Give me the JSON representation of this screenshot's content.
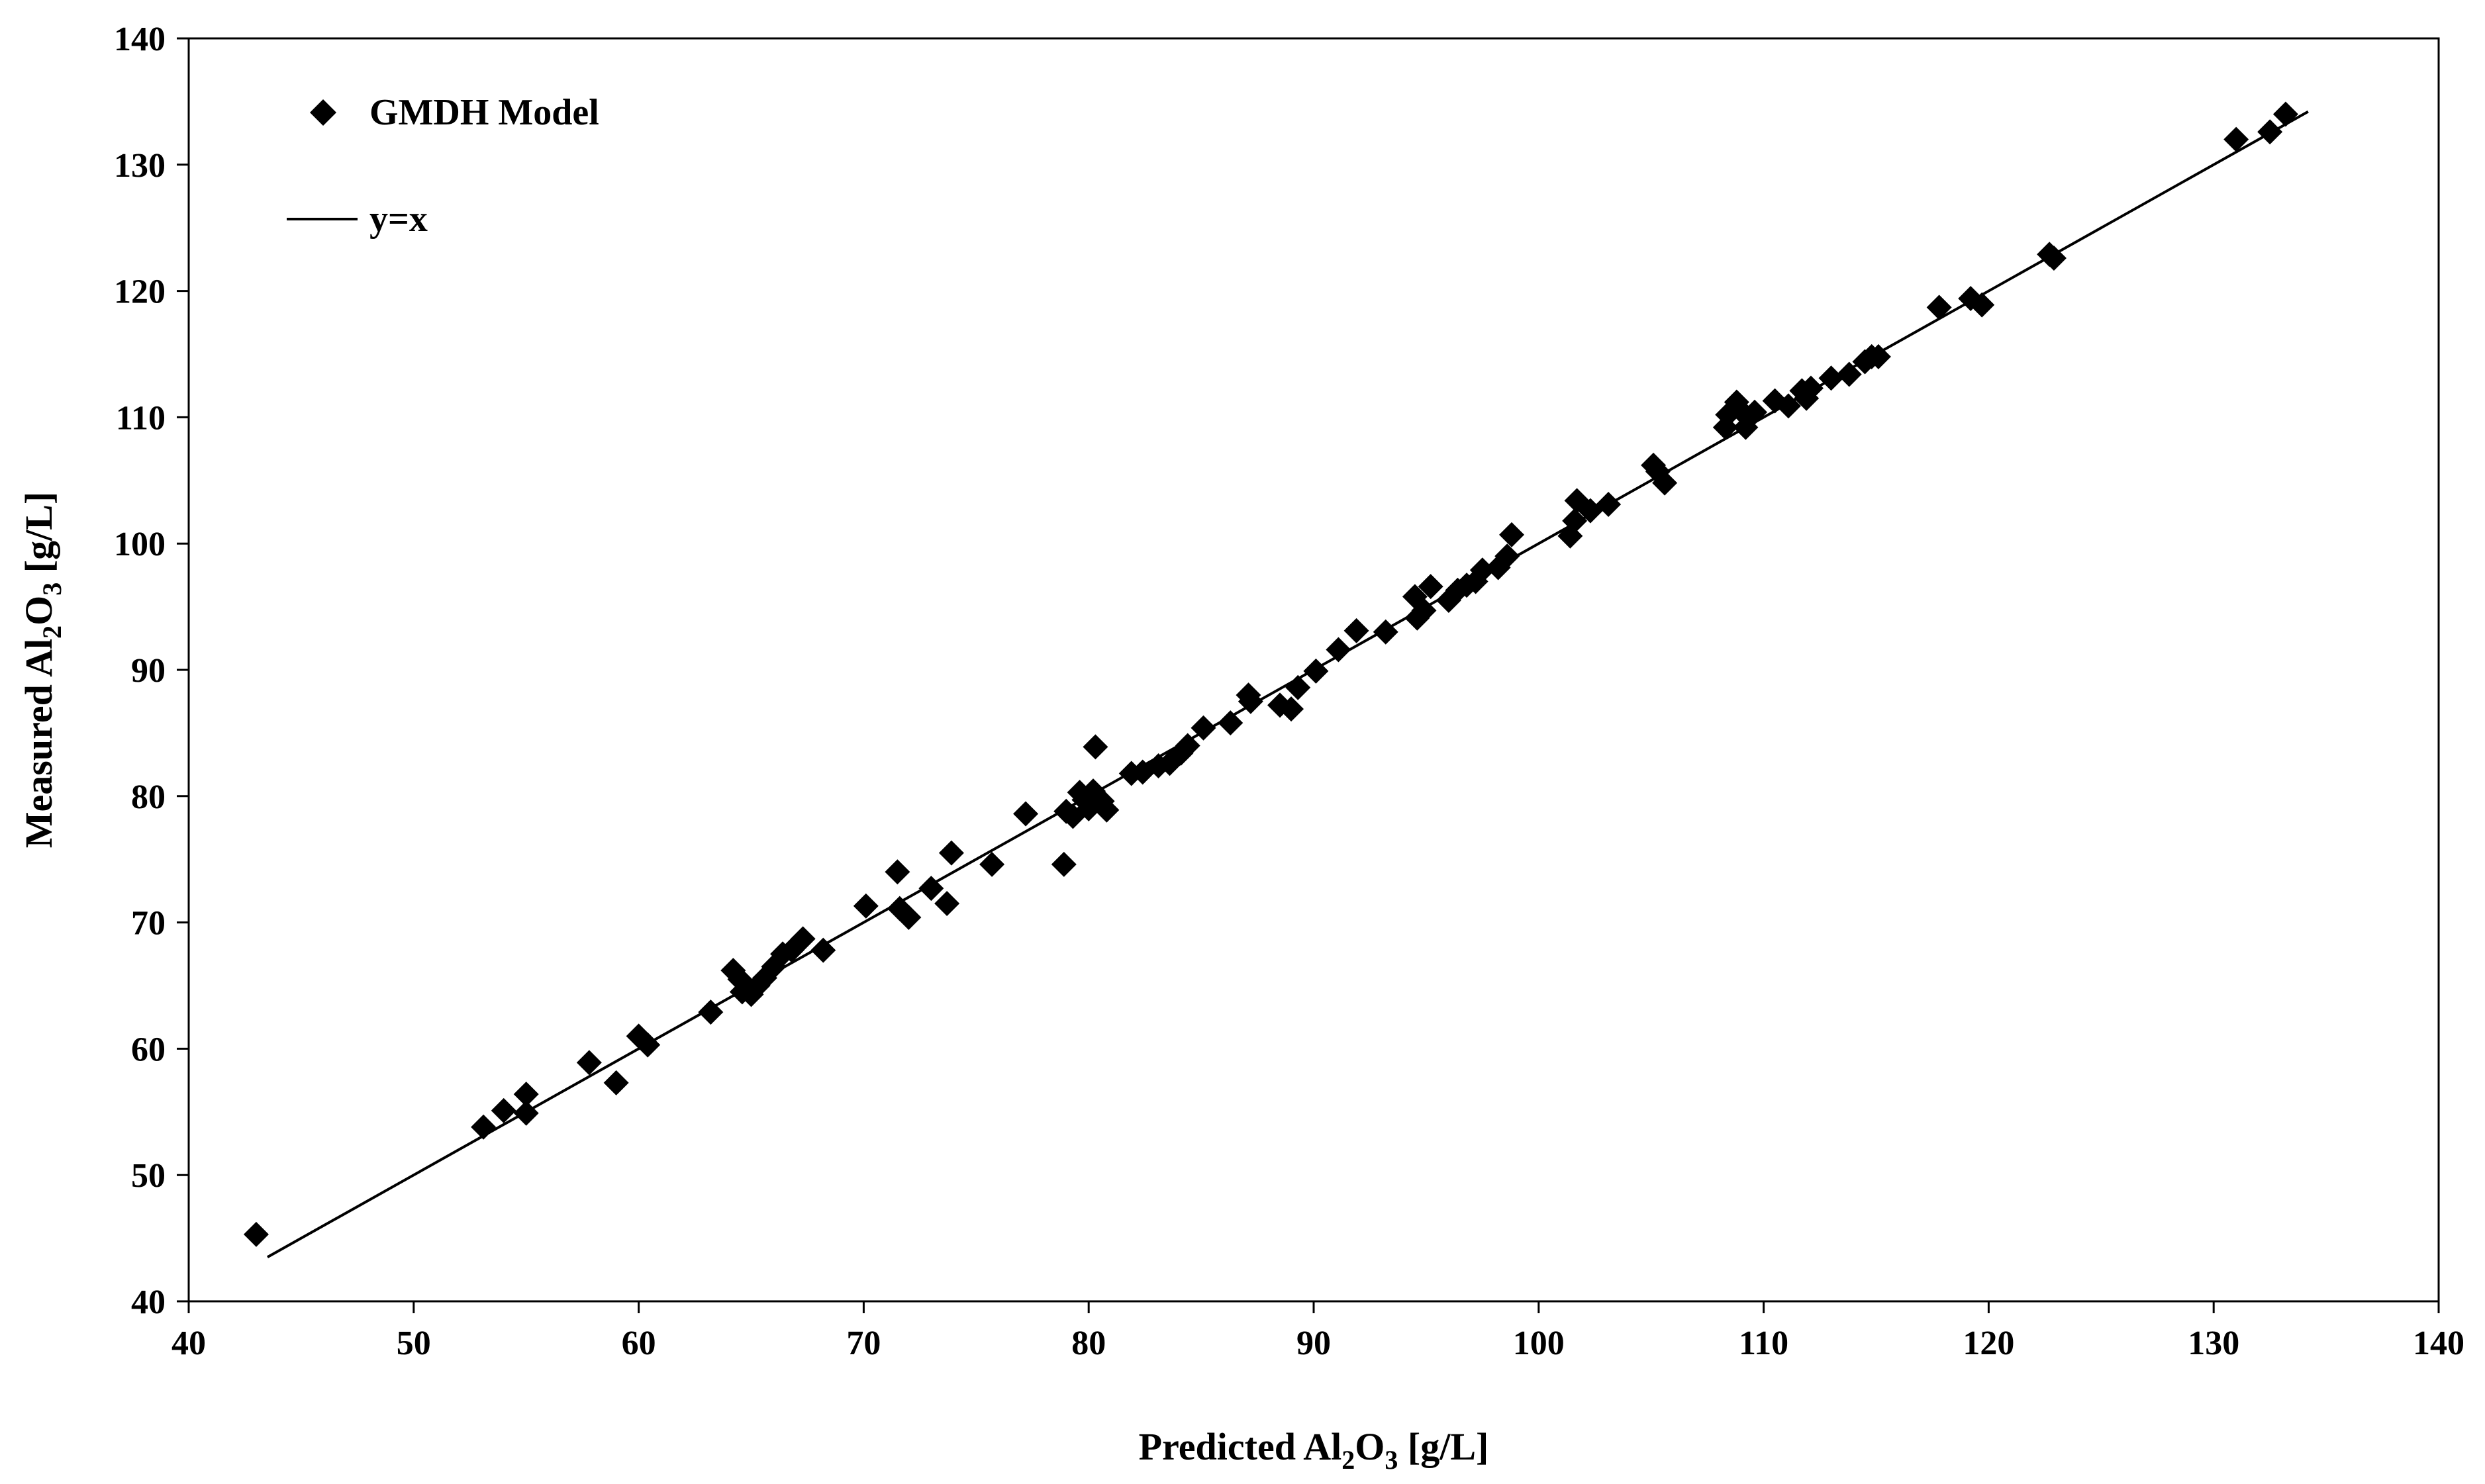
{
  "chart_data": {
    "type": "scatter",
    "xlabel": {
      "main": "Predicted Al",
      "sub1": "2",
      "mid": "O",
      "sub2": "3",
      "unit": " [g/L]"
    },
    "ylabel": {
      "main": "Measured Al",
      "sub1": "2",
      "mid": "O",
      "sub2": "3",
      "unit": " [g/L]"
    },
    "xlim": [
      40,
      140
    ],
    "ylim": [
      40,
      140
    ],
    "xticks": [
      40,
      50,
      60,
      70,
      80,
      90,
      100,
      110,
      120,
      130,
      140
    ],
    "yticks": [
      40,
      50,
      60,
      70,
      80,
      90,
      100,
      110,
      120,
      130,
      140
    ],
    "grid": false,
    "legend_position": "top-left",
    "series": [
      {
        "name": "GMDH Model",
        "kind": "scatter",
        "marker": "diamond",
        "color": "#000000",
        "points": [
          [
            43,
            45.3
          ],
          [
            53.1,
            53.8
          ],
          [
            54,
            55.1
          ],
          [
            55,
            56.4
          ],
          [
            55,
            54.9
          ],
          [
            57.8,
            58.9
          ],
          [
            59,
            57.3
          ],
          [
            60,
            61
          ],
          [
            60.4,
            60.3
          ],
          [
            63.2,
            62.9
          ],
          [
            64.2,
            66.2
          ],
          [
            64.5,
            65.5
          ],
          [
            64.6,
            64.5
          ],
          [
            65,
            64.3
          ],
          [
            65.3,
            65
          ],
          [
            65.6,
            65.6
          ],
          [
            66,
            66.5
          ],
          [
            66.4,
            67.5
          ],
          [
            66.8,
            67.8
          ],
          [
            67.3,
            68.7
          ],
          [
            68.2,
            67.8
          ],
          [
            70.1,
            71.3
          ],
          [
            71.5,
            74
          ],
          [
            71.6,
            71.1
          ],
          [
            72,
            70.4
          ],
          [
            73,
            72.7
          ],
          [
            73.7,
            71.5
          ],
          [
            73.9,
            75.5
          ],
          [
            75.7,
            74.6
          ],
          [
            77.2,
            78.6
          ],
          [
            78.9,
            74.6
          ],
          [
            79,
            78.8
          ],
          [
            79.3,
            78.4
          ],
          [
            79.6,
            80.3
          ],
          [
            79.8,
            79.7
          ],
          [
            80,
            79
          ],
          [
            80.2,
            80.4
          ],
          [
            80.3,
            83.9
          ],
          [
            80.6,
            79.6
          ],
          [
            80.8,
            78.9
          ],
          [
            81.9,
            81.8
          ],
          [
            82.4,
            81.9
          ],
          [
            83.1,
            82.4
          ],
          [
            83.6,
            82.6
          ],
          [
            84.1,
            83.4
          ],
          [
            84.4,
            84
          ],
          [
            85.1,
            85.4
          ],
          [
            86.3,
            85.8
          ],
          [
            87.1,
            88
          ],
          [
            87.2,
            87.5
          ],
          [
            88.5,
            87.2
          ],
          [
            89,
            86.9
          ],
          [
            89.3,
            88.6
          ],
          [
            90.1,
            89.9
          ],
          [
            91.1,
            91.6
          ],
          [
            91.9,
            93.1
          ],
          [
            93.2,
            93
          ],
          [
            94.5,
            95.8
          ],
          [
            94.6,
            94.1
          ],
          [
            94.9,
            94.7
          ],
          [
            95.2,
            96.6
          ],
          [
            96,
            95.5
          ],
          [
            96.4,
            96.3
          ],
          [
            96.8,
            96.7
          ],
          [
            97.2,
            97
          ],
          [
            97.5,
            97.9
          ],
          [
            98.2,
            98.1
          ],
          [
            98.6,
            99
          ],
          [
            98.8,
            100.7
          ],
          [
            101.4,
            100.6
          ],
          [
            101.6,
            101.8
          ],
          [
            101.7,
            103.4
          ],
          [
            102.3,
            102.6
          ],
          [
            103.1,
            103.1
          ],
          [
            105.1,
            106.2
          ],
          [
            105.3,
            105.7
          ],
          [
            105.6,
            104.8
          ],
          [
            108.3,
            109.2
          ],
          [
            108.4,
            110.2
          ],
          [
            108.8,
            111.2
          ],
          [
            109,
            110.5
          ],
          [
            109.2,
            109.2
          ],
          [
            109.6,
            110.4
          ],
          [
            110.5,
            111.3
          ],
          [
            111.1,
            110.9
          ],
          [
            111.7,
            112.1
          ],
          [
            111.9,
            111.5
          ],
          [
            112.1,
            112.3
          ],
          [
            113,
            113.1
          ],
          [
            113.8,
            113.4
          ],
          [
            114.5,
            114.4
          ],
          [
            114.8,
            114.8
          ],
          [
            115.1,
            114.8
          ],
          [
            117.8,
            118.7
          ],
          [
            119.2,
            119.4
          ],
          [
            119.7,
            118.9
          ],
          [
            122.7,
            122.9
          ],
          [
            122.9,
            122.6
          ],
          [
            131,
            132
          ],
          [
            132.5,
            132.6
          ],
          [
            133.2,
            134
          ]
        ]
      },
      {
        "name": "y=x",
        "kind": "line",
        "color": "#000000",
        "from": [
          43.5,
          43.5
        ],
        "to": [
          134.2,
          134.2
        ]
      }
    ]
  }
}
